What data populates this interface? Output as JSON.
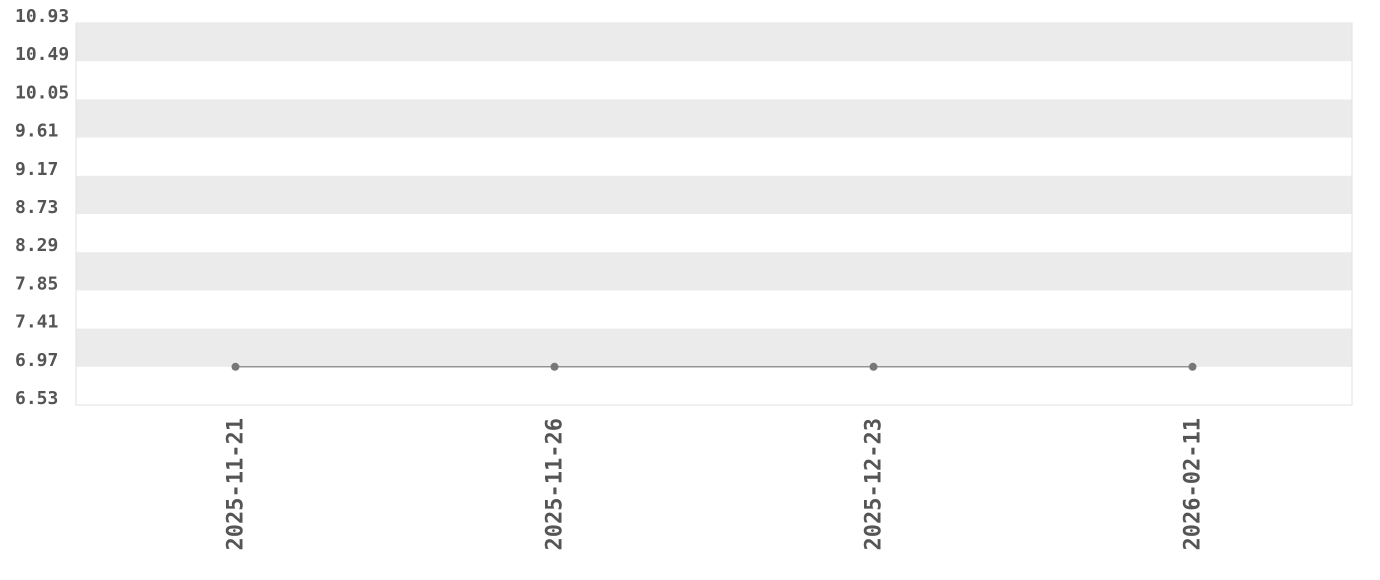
{
  "chart_data": {
    "type": "line",
    "title": "",
    "xlabel": "",
    "ylabel": "",
    "categories": [
      "2025-11-21",
      "2025-11-26",
      "2025-12-23",
      "2026-02-11"
    ],
    "values": [
      6.97,
      6.97,
      6.97,
      6.97
    ],
    "ylim": [
      6.53,
      10.93
    ],
    "yticks": [
      "10.93",
      "10.49",
      "10.05",
      "9.61",
      "9.17",
      "8.73",
      "8.29",
      "7.85",
      "7.41",
      "6.97",
      "6.53"
    ],
    "grid": "alternating horizontal bands",
    "colors": {
      "line": "#777777",
      "point": "#777777",
      "band": "#ebebeb",
      "text": "#555555"
    }
  }
}
